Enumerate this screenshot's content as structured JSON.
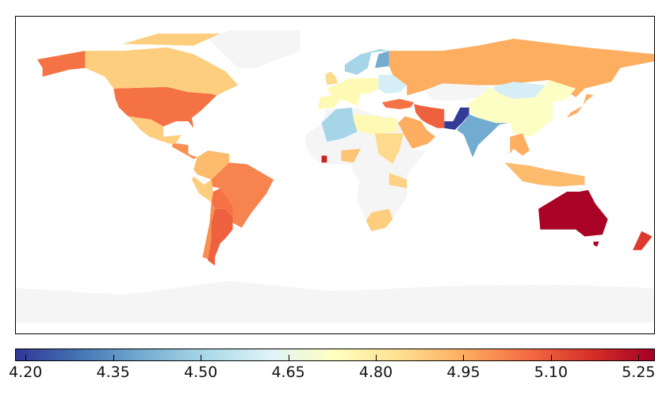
{
  "colorbar": {
    "min": 4.182,
    "max": 5.278,
    "colormap": [
      "#313695",
      "#4575b4",
      "#74add1",
      "#abd9e9",
      "#e0f3f8",
      "#ffffbf",
      "#fee090",
      "#fdae61",
      "#f46d43",
      "#d73027",
      "#a50026"
    ],
    "ticks": [
      {
        "value": 4.2,
        "label": "4.20"
      },
      {
        "value": 4.35,
        "label": "4.35"
      },
      {
        "value": 4.5,
        "label": "4.50"
      },
      {
        "value": 4.65,
        "label": "4.65"
      },
      {
        "value": 4.8,
        "label": "4.80"
      },
      {
        "value": 4.95,
        "label": "4.95"
      },
      {
        "value": 5.1,
        "label": "5.10"
      },
      {
        "value": 5.25,
        "label": "5.25"
      }
    ]
  },
  "no_data_color": "#f5f5f5",
  "regions": [
    {
      "name": "greenland",
      "value": null
    },
    {
      "name": "antarctica",
      "value": null
    },
    {
      "name": "africa",
      "value": null
    },
    {
      "name": "kazakhstan",
      "value": null
    },
    {
      "name": "usa",
      "value": 5.05
    },
    {
      "name": "alaska",
      "value": 5.05
    },
    {
      "name": "canada",
      "value": 4.88
    },
    {
      "name": "canada-islands",
      "value": 4.88
    },
    {
      "name": "mexico",
      "value": 4.88
    },
    {
      "name": "central-america",
      "value": 5.0
    },
    {
      "name": "northern-south-america",
      "value": 4.92
    },
    {
      "name": "brazil",
      "value": 5.02
    },
    {
      "name": "peru",
      "value": 4.88
    },
    {
      "name": "bolivia-paraguay",
      "value": 5.05
    },
    {
      "name": "chile",
      "value": 5.0
    },
    {
      "name": "argentina",
      "value": 5.08
    },
    {
      "name": "western-europe",
      "value": 4.75
    },
    {
      "name": "uk",
      "value": 4.85
    },
    {
      "name": "scandinavia",
      "value": 4.5
    },
    {
      "name": "finland",
      "value": 4.4
    },
    {
      "name": "eastern-europe",
      "value": 4.6
    },
    {
      "name": "turkey",
      "value": 5.05
    },
    {
      "name": "russia",
      "value": 4.95
    },
    {
      "name": "mongolia",
      "value": 4.6
    },
    {
      "name": "china",
      "value": 4.72
    },
    {
      "name": "india",
      "value": 4.4
    },
    {
      "name": "pakistan",
      "value": 4.19
    },
    {
      "name": "iran",
      "value": 5.08
    },
    {
      "name": "saudi-arabia",
      "value": 4.95
    },
    {
      "name": "egypt",
      "value": 4.75
    },
    {
      "name": "libya",
      "value": 4.75
    },
    {
      "name": "algeria",
      "value": 4.5
    },
    {
      "name": "nigeria",
      "value": 4.9
    },
    {
      "name": "sudan",
      "value": 4.85
    },
    {
      "name": "tanzania",
      "value": 4.87
    },
    {
      "name": "south-africa",
      "value": 4.88
    },
    {
      "name": "cote-divoire",
      "value": 5.2
    },
    {
      "name": "southeast-asia",
      "value": 4.95
    },
    {
      "name": "indonesia",
      "value": 4.92
    },
    {
      "name": "japan",
      "value": 4.95
    },
    {
      "name": "australia",
      "value": 5.27
    },
    {
      "name": "tasmania",
      "value": 5.27
    },
    {
      "name": "new-zealand",
      "value": 5.15
    }
  ]
}
